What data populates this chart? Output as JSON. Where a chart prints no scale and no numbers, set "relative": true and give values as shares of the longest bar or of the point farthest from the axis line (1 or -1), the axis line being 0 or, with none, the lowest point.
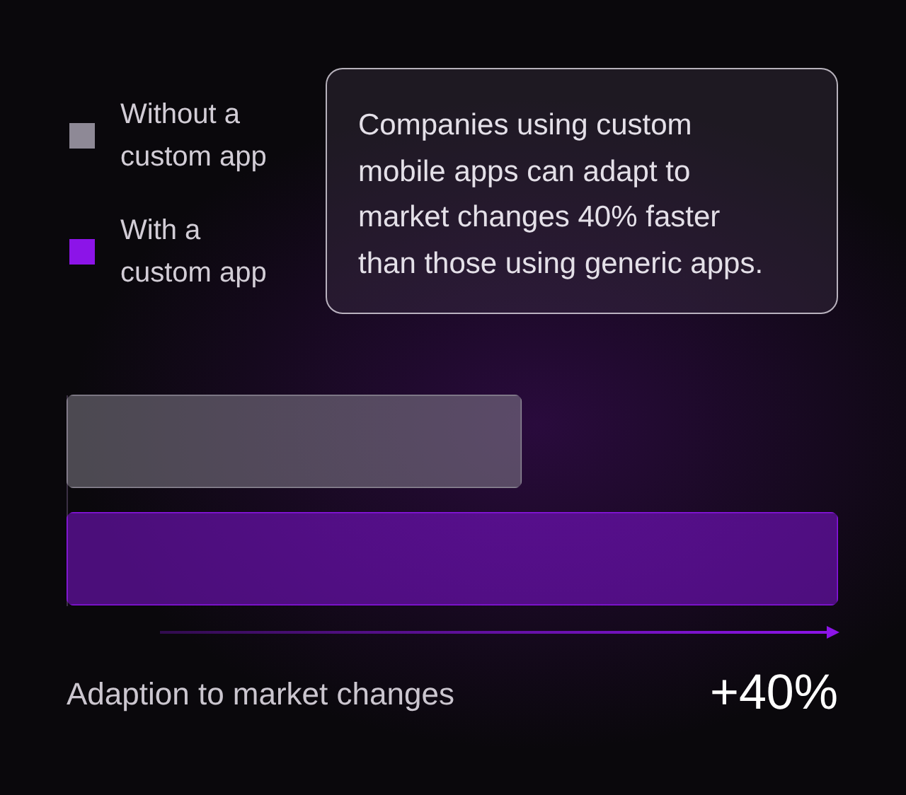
{
  "chart_data": {
    "type": "bar",
    "orientation": "horizontal",
    "stacked": true,
    "relative": true,
    "categories": [
      null,
      null
    ],
    "series": [
      {
        "name": "Without a custom app",
        "color": "#8e8996",
        "values": [
          0.59,
          null
        ]
      },
      {
        "name": "With a custom app",
        "color": "#8c14e8",
        "values": [
          null,
          1
        ]
      }
    ],
    "xlabel": "Adaption to market changes",
    "legend": "top left",
    "annotations": [
      "Companies using custom mobile apps can adapt to market changes 40% faster than those using generic apps.",
      "+40%"
    ]
  }
}
